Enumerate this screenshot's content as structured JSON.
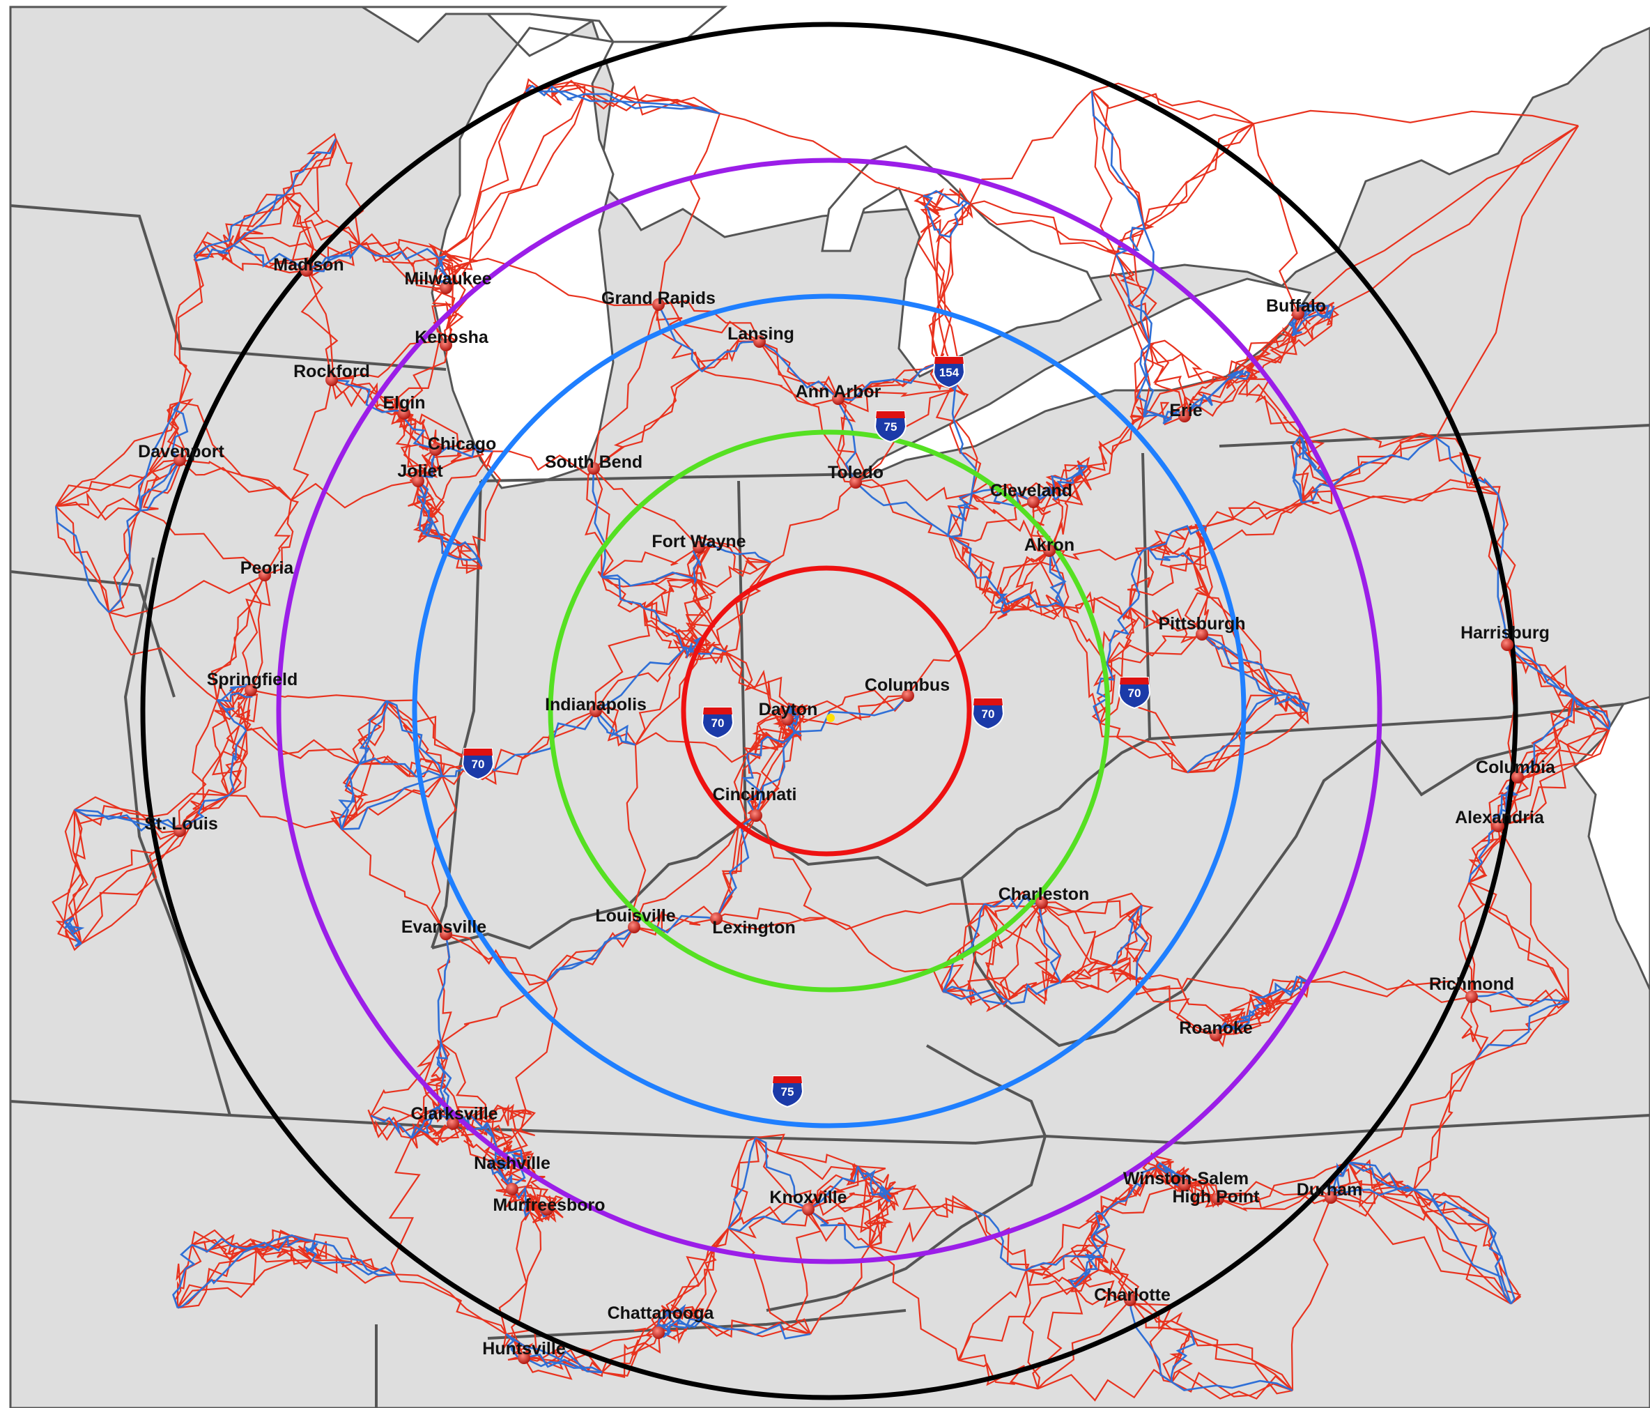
{
  "colors": {
    "land": "#dedede",
    "water": "#ffffff",
    "state_border": "#555555",
    "highway": "#e8321e",
    "interstate": "#2f6fd6",
    "pin": "#d4261c",
    "ring_1": "#ee1111",
    "ring_2": "#55e022",
    "ring_3": "#1f7fff",
    "ring_4": "#9b1ee8",
    "ring_5": "#000000"
  },
  "center_marker": "yellow-star-dot",
  "rings": [
    {
      "name": "ring-1",
      "color": "ring_1"
    },
    {
      "name": "ring-2",
      "color": "ring_2"
    },
    {
      "name": "ring-3",
      "color": "ring_3"
    },
    {
      "name": "ring-4",
      "color": "ring_4"
    },
    {
      "name": "ring-5",
      "color": "ring_5"
    }
  ],
  "cities": [
    {
      "id": "madison",
      "label": "Madison"
    },
    {
      "id": "milwaukee",
      "label": "Milwaukee"
    },
    {
      "id": "kenosha",
      "label": "Kenosha"
    },
    {
      "id": "rockford",
      "label": "Rockford"
    },
    {
      "id": "elgin",
      "label": "Elgin"
    },
    {
      "id": "chicago",
      "label": "Chicago"
    },
    {
      "id": "joliet",
      "label": "Joliet"
    },
    {
      "id": "davenport",
      "label": "Davenport"
    },
    {
      "id": "peoria",
      "label": "Peoria"
    },
    {
      "id": "springfield",
      "label": "Springfield"
    },
    {
      "id": "st-louis",
      "label": "St. Louis"
    },
    {
      "id": "grand-rapids",
      "label": "Grand Rapids"
    },
    {
      "id": "lansing",
      "label": "Lansing"
    },
    {
      "id": "ann-arbor",
      "label": "Ann Arbor"
    },
    {
      "id": "south-bend",
      "label": "South Bend"
    },
    {
      "id": "toledo",
      "label": "Toledo"
    },
    {
      "id": "fort-wayne",
      "label": "Fort Wayne"
    },
    {
      "id": "cleveland",
      "label": "Cleveland"
    },
    {
      "id": "akron",
      "label": "Akron"
    },
    {
      "id": "erie",
      "label": "Erie"
    },
    {
      "id": "buffalo",
      "label": "Buffalo"
    },
    {
      "id": "pittsburgh",
      "label": "Pittsburgh"
    },
    {
      "id": "harrisburg",
      "label": "Harrisburg"
    },
    {
      "id": "indianapolis",
      "label": "Indianapolis"
    },
    {
      "id": "dayton",
      "label": "Dayton"
    },
    {
      "id": "columbus-oh",
      "label": "Columbus"
    },
    {
      "id": "cincinnati",
      "label": "Cincinnati"
    },
    {
      "id": "columbia",
      "label": "Columbia"
    },
    {
      "id": "alexandria",
      "label": "Alexandria"
    },
    {
      "id": "evansville",
      "label": "Evansville"
    },
    {
      "id": "louisville",
      "label": "Louisville"
    },
    {
      "id": "lexington",
      "label": "Lexington"
    },
    {
      "id": "charleston",
      "label": "Charleston"
    },
    {
      "id": "richmond",
      "label": "Richmond"
    },
    {
      "id": "roanoke",
      "label": "Roanoke"
    },
    {
      "id": "clarksville",
      "label": "Clarksville"
    },
    {
      "id": "nashville",
      "label": "Nashville"
    },
    {
      "id": "murfreesboro",
      "label": "Murfreesboro"
    },
    {
      "id": "knoxville",
      "label": "Knoxville"
    },
    {
      "id": "winston-salem",
      "label": "Winston-Salem"
    },
    {
      "id": "high-point",
      "label": "High Point"
    },
    {
      "id": "durham",
      "label": "Durham"
    },
    {
      "id": "charlotte",
      "label": "Charlotte"
    },
    {
      "id": "chattanooga",
      "label": "Chattanooga"
    },
    {
      "id": "huntsville",
      "label": "Huntsville"
    }
  ],
  "shields": [
    {
      "id": "i154",
      "route": "154"
    },
    {
      "id": "i75-north",
      "route": "75"
    },
    {
      "id": "i70-dayton",
      "route": "70"
    },
    {
      "id": "i70-east",
      "route": "70"
    },
    {
      "id": "i70-west",
      "route": "70"
    },
    {
      "id": "i70-pa",
      "route": "70"
    },
    {
      "id": "i75-south",
      "route": "75"
    }
  ]
}
